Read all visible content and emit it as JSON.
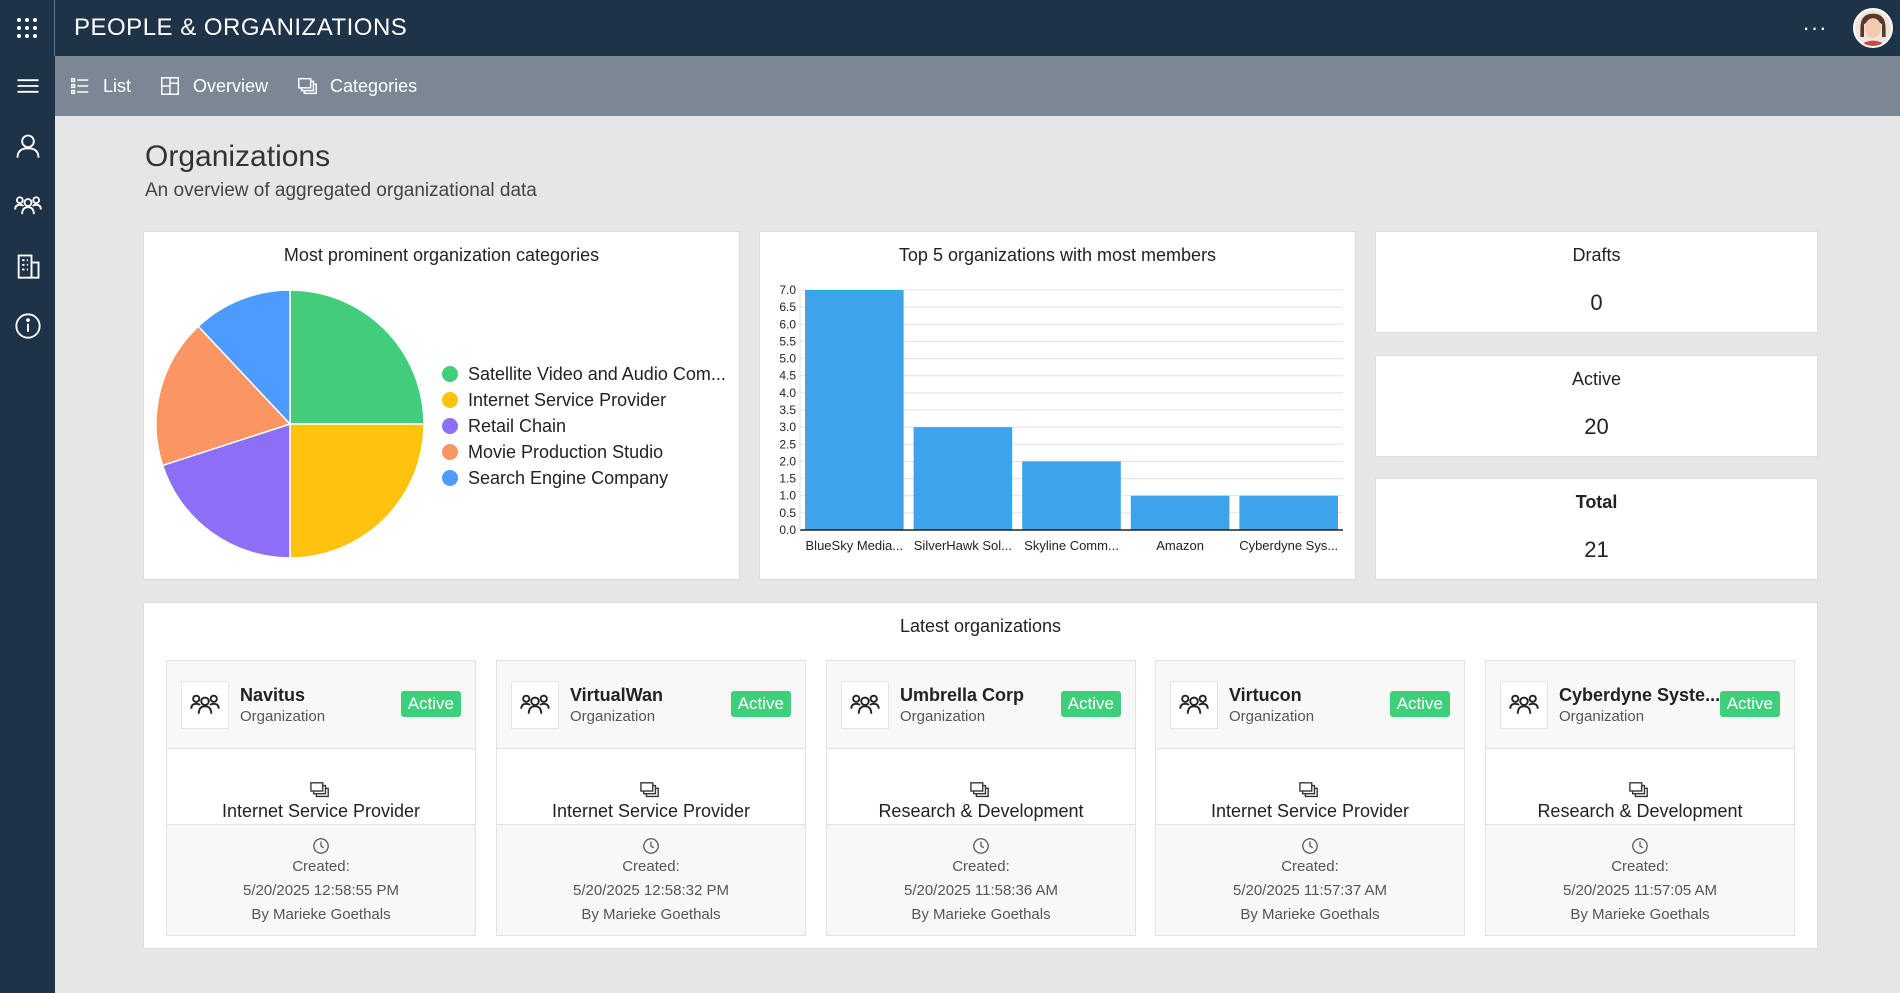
{
  "app": {
    "title": "PEOPLE & ORGANIZATIONS"
  },
  "commands": [
    {
      "label": "List",
      "icon": "list-icon"
    },
    {
      "label": "Overview",
      "icon": "dashboard-icon"
    },
    {
      "label": "Categories",
      "icon": "categories-icon"
    }
  ],
  "rail": [
    "menu-icon",
    "person-icon",
    "people-group-icon",
    "building-icon",
    "info-icon"
  ],
  "header": {
    "title": "Organizations",
    "subtitle": "An overview of aggregated organizational data"
  },
  "pie_card": {
    "title": "Most prominent organization categories",
    "legend": [
      {
        "label": "Satellite Video and Audio Com...",
        "color": "#41cd7c"
      },
      {
        "label": "Internet Service Provider",
        "color": "#ffc20e"
      },
      {
        "label": "Retail Chain",
        "color": "#8c6ff5"
      },
      {
        "label": "Movie Production Studio",
        "color": "#fb9562"
      },
      {
        "label": "Search Engine Company",
        "color": "#4e9bff"
      }
    ]
  },
  "bar_card": {
    "title": "Top 5 organizations with most members"
  },
  "chart_data": [
    {
      "type": "pie",
      "title": "Most prominent organization categories",
      "categories": [
        "Satellite Video and Audio Com...",
        "Internet Service Provider",
        "Retail Chain",
        "Movie Production Studio",
        "Search Engine Company"
      ],
      "values": [
        25,
        25,
        20,
        18,
        12
      ],
      "colors": [
        "#41cd7c",
        "#ffc20e",
        "#8c6ff5",
        "#fb9562",
        "#4e9bff"
      ],
      "legend": "right"
    },
    {
      "type": "bar",
      "title": "Top 5 organizations with most members",
      "categories": [
        "BlueSky Media...",
        "SilverHawk Sol...",
        "Skyline Comm...",
        "Amazon",
        "Cyberdyne Sys..."
      ],
      "values": [
        7,
        3,
        2,
        1,
        1
      ],
      "ylim": [
        0,
        7
      ],
      "yticks": [
        "0.0",
        "0.5",
        "1.0",
        "1.5",
        "2.0",
        "2.5",
        "3.0",
        "3.5",
        "4.0",
        "4.5",
        "5.0",
        "5.5",
        "6.0",
        "6.5",
        "7.0"
      ],
      "color": "#3ba4ea",
      "grid": true
    }
  ],
  "stats": {
    "drafts": {
      "label": "Drafts",
      "value": "0"
    },
    "active": {
      "label": "Active",
      "value": "20"
    },
    "total": {
      "label": "Total",
      "value": "21"
    }
  },
  "latest": {
    "title": "Latest organizations",
    "items": [
      {
        "name": "Navitus",
        "type": "Organization",
        "status": "Active",
        "category": "Internet Service Provider",
        "created_label": "Created:",
        "created": "5/20/2025 12:58:55 PM",
        "by": "By Marieke Goethals"
      },
      {
        "name": "VirtualWan",
        "type": "Organization",
        "status": "Active",
        "category": "Internet Service Provider",
        "created_label": "Created:",
        "created": "5/20/2025 12:58:32 PM",
        "by": "By Marieke Goethals"
      },
      {
        "name": "Umbrella Corp",
        "type": "Organization",
        "status": "Active",
        "category": "Research & Development",
        "created_label": "Created:",
        "created": "5/20/2025 11:58:36 AM",
        "by": "By Marieke Goethals"
      },
      {
        "name": "Virtucon",
        "type": "Organization",
        "status": "Active",
        "category": "Internet Service Provider",
        "created_label": "Created:",
        "created": "5/20/2025 11:57:37 AM",
        "by": "By Marieke Goethals"
      },
      {
        "name": "Cyberdyne Syste...",
        "type": "Organization",
        "status": "Active",
        "category": "Research & Development",
        "created_label": "Created:",
        "created": "5/20/2025 11:57:05 AM",
        "by": "By Marieke Goethals"
      }
    ]
  }
}
